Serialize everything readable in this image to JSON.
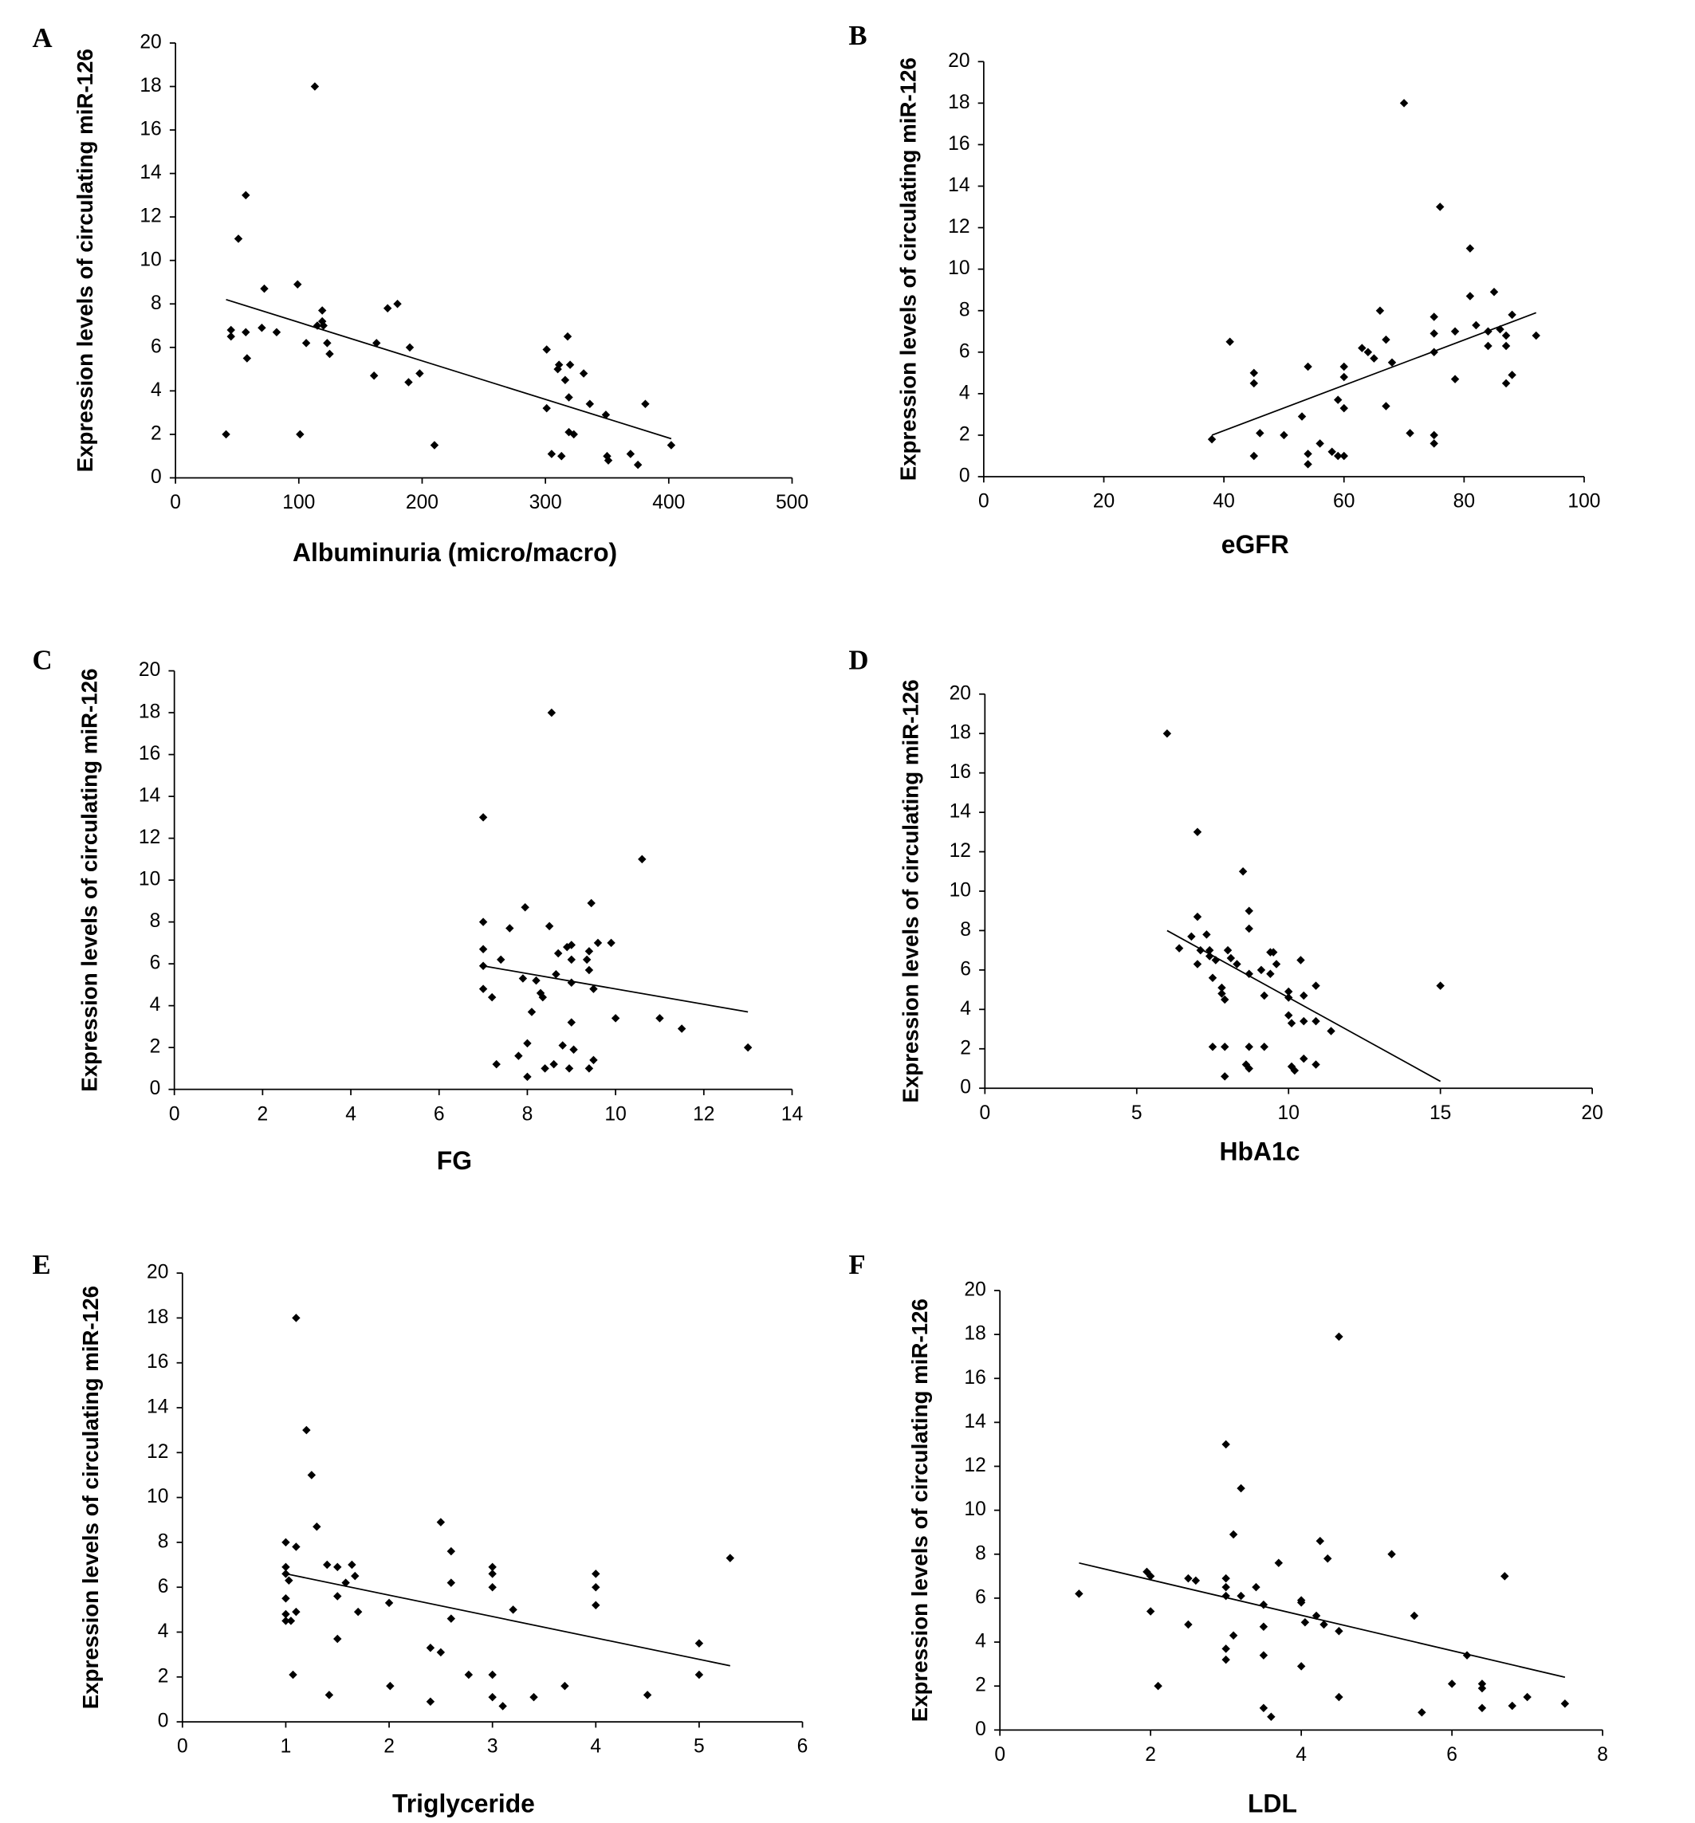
{
  "chart_data": [
    {
      "type": "scatter",
      "panel": "A",
      "x_label": "Albuminuria (micro/macro)",
      "y_label": "Expression levels of circulating miR-126",
      "color": "#000000",
      "xlim": [
        0,
        500
      ],
      "ylim": [
        0,
        20
      ],
      "xticks": [
        0,
        100,
        200,
        300,
        400,
        500
      ],
      "yticks": [
        0,
        2,
        4,
        6,
        8,
        10,
        12,
        14,
        16,
        18,
        20
      ],
      "x": [
        41,
        45,
        45,
        51,
        57,
        57,
        58,
        72,
        70,
        82,
        99,
        101,
        106,
        113,
        115,
        119,
        119,
        120,
        123,
        125,
        161,
        163,
        172,
        180,
        190,
        189,
        198,
        210,
        301,
        301,
        305,
        310,
        311,
        313,
        316,
        318,
        320,
        319,
        319,
        323,
        331,
        336,
        349,
        350,
        351,
        369,
        375,
        381,
        402
      ],
      "y": [
        2.0,
        6.8,
        6.5,
        11,
        13,
        6.7,
        5.5,
        8.7,
        6.9,
        6.7,
        8.9,
        2.0,
        6.2,
        18,
        7.0,
        7.2,
        7.7,
        7.0,
        6.2,
        5.7,
        4.7,
        6.2,
        7.8,
        8.0,
        6.0,
        4.4,
        4.8,
        1.5,
        5.9,
        3.2,
        1.1,
        5.0,
        5.2,
        1.0,
        4.5,
        6.5,
        5.2,
        3.7,
        2.1,
        2.0,
        4.8,
        3.4,
        2.9,
        1.0,
        0.8,
        1.1,
        0.6,
        3.4,
        1.5
      ],
      "trendline": {
        "x": [
          41,
          402
        ],
        "y": [
          8.2,
          1.8
        ]
      }
    },
    {
      "type": "scatter",
      "panel": "B",
      "x_label": "eGFR",
      "y_label": "Expression levels of circulating miR-126",
      "color": "#000000",
      "xlim": [
        0,
        100
      ],
      "ylim": [
        0,
        20
      ],
      "xticks": [
        0,
        20,
        40,
        60,
        80,
        100
      ],
      "yticks": [
        0,
        2,
        4,
        6,
        8,
        10,
        12,
        14,
        16,
        18,
        20
      ],
      "x": [
        38,
        41,
        45,
        45,
        45,
        46,
        50,
        53,
        54,
        54,
        54,
        56,
        58,
        59,
        59,
        60,
        60,
        60,
        60,
        63,
        64,
        65,
        66,
        67,
        67,
        68,
        70,
        71,
        75,
        75,
        75,
        75,
        75,
        76,
        78.5,
        78.5,
        81,
        81,
        82,
        84,
        85,
        84,
        86,
        87,
        87,
        87,
        88,
        88,
        92
      ],
      "y": [
        1.8,
        6.5,
        5.0,
        4.5,
        1.0,
        2.1,
        2.0,
        2.9,
        5.3,
        1.1,
        0.6,
        1.6,
        1.2,
        3.7,
        1.0,
        3.3,
        4.8,
        5.3,
        1.0,
        6.2,
        6.0,
        5.7,
        8.0,
        6.6,
        3.4,
        5.5,
        18,
        2.1,
        7.7,
        6.9,
        6.0,
        2.0,
        1.6,
        13,
        4.7,
        7.0,
        11,
        8.7,
        7.3,
        7.0,
        8.9,
        6.3,
        7.1,
        6.8,
        6.3,
        4.5,
        4.9,
        7.8,
        6.8
      ],
      "trendline": {
        "x": [
          38,
          92
        ],
        "y": [
          2.0,
          7.9
        ]
      }
    },
    {
      "type": "scatter",
      "panel": "C",
      "x_label": "FG",
      "y_label": "Expression levels of circulating miR-126",
      "color": "#000000",
      "xlim": [
        0,
        14
      ],
      "ylim": [
        0,
        20
      ],
      "xticks": [
        0,
        2,
        4,
        6,
        8,
        10,
        12,
        14
      ],
      "yticks": [
        0,
        2,
        4,
        6,
        8,
        10,
        12,
        14,
        16,
        18,
        20
      ],
      "x": [
        7.0,
        7.0,
        7.0,
        7.0,
        7.0,
        7.2,
        7.3,
        7.4,
        7.6,
        7.8,
        7.9,
        7.95,
        8.0,
        8.0,
        8.1,
        8.2,
        8.3,
        8.35,
        8.4,
        8.5,
        8.55,
        8.6,
        8.65,
        8.7,
        8.8,
        8.9,
        8.95,
        9.0,
        9.0,
        9.0,
        9.0,
        9.05,
        9.35,
        9.4,
        9.4,
        9.4,
        9.45,
        9.5,
        9.5,
        9.6,
        9.9,
        10.0,
        10.6,
        11.0,
        11.5,
        13.0
      ],
      "y": [
        13,
        8.0,
        6.7,
        5.9,
        4.8,
        4.4,
        1.2,
        6.2,
        7.7,
        1.6,
        5.3,
        8.7,
        2.2,
        0.6,
        3.7,
        5.2,
        4.6,
        4.4,
        1.0,
        7.8,
        18,
        1.2,
        5.5,
        6.5,
        2.1,
        6.8,
        1.0,
        6.9,
        6.2,
        5.1,
        3.2,
        1.9,
        6.2,
        5.7,
        6.6,
        1.0,
        8.9,
        1.4,
        4.8,
        7.0,
        7.0,
        3.4,
        11,
        3.4,
        2.9,
        2.0
      ],
      "trendline": {
        "x": [
          7.0,
          13.0
        ],
        "y": [
          5.9,
          3.7
        ]
      }
    },
    {
      "type": "scatter",
      "panel": "D",
      "x_label": "HbA1c",
      "y_label": "Expression levels of circulating miR-126",
      "color": "#000000",
      "xlim": [
        0,
        20
      ],
      "ylim": [
        0,
        20
      ],
      "xticks": [
        0,
        5,
        10,
        15,
        20
      ],
      "yticks": [
        0,
        2,
        4,
        6,
        8,
        10,
        12,
        14,
        16,
        18,
        20
      ],
      "x": [
        6.0,
        6.4,
        6.8,
        7.0,
        7.0,
        7.0,
        7.1,
        7.3,
        7.4,
        7.4,
        7.5,
        7.5,
        7.6,
        7.8,
        7.8,
        7.9,
        7.9,
        7.9,
        8.0,
        8.1,
        8.3,
        8.5,
        8.7,
        8.7,
        8.7,
        8.6,
        8.7,
        8.7,
        9.1,
        9.2,
        9.2,
        9.4,
        9.4,
        9.5,
        9.6,
        10.0,
        10.0,
        10.0,
        10.1,
        10.1,
        10.2,
        10.5,
        10.4,
        10.5,
        10.5,
        10.9,
        10.9,
        10.9,
        11.4,
        15.0
      ],
      "y": [
        18,
        7.1,
        7.7,
        13,
        8.7,
        6.3,
        7.0,
        7.8,
        7.0,
        6.7,
        5.6,
        2.1,
        6.5,
        5.1,
        4.8,
        4.5,
        2.1,
        0.6,
        7.0,
        6.6,
        6.3,
        11,
        9.0,
        8.1,
        5.8,
        1.2,
        1.0,
        2.1,
        6.0,
        4.7,
        2.1,
        6.9,
        5.8,
        6.9,
        6.3,
        3.7,
        4.6,
        4.9,
        3.3,
        1.1,
        0.9,
        4.7,
        6.5,
        3.4,
        1.5,
        1.2,
        5.2,
        3.4,
        2.9,
        5.2
      ],
      "trendline": {
        "x": [
          6.0,
          15.0
        ],
        "y": [
          8.0,
          0.35
        ]
      }
    },
    {
      "type": "scatter",
      "panel": "E",
      "x_label": "Triglyceride",
      "y_label": "Expression levels of circulating miR-126",
      "color": "#000000",
      "xlim": [
        0,
        6
      ],
      "ylim": [
        0,
        20
      ],
      "xticks": [
        0,
        1,
        2,
        3,
        4,
        5,
        6
      ],
      "yticks": [
        0,
        2,
        4,
        6,
        8,
        10,
        12,
        14,
        16,
        18,
        20
      ],
      "x": [
        1.0,
        1.0,
        1.0,
        1.0,
        1.0,
        1.0,
        1.03,
        1.05,
        1.07,
        1.1,
        1.1,
        1.1,
        1.2,
        1.25,
        1.3,
        1.4,
        1.42,
        1.5,
        1.5,
        1.5,
        1.58,
        1.64,
        1.67,
        1.7,
        2.0,
        2.01,
        2.4,
        2.4,
        2.5,
        2.5,
        2.6,
        2.6,
        2.6,
        2.77,
        3.0,
        3.0,
        3.0,
        3.0,
        3.0,
        3.1,
        3.2,
        3.4,
        3.7,
        4.0,
        4.0,
        4.0,
        4.5,
        5.0,
        5.0,
        5.3
      ],
      "y": [
        8.0,
        6.9,
        6.6,
        5.5,
        4.8,
        4.5,
        6.3,
        4.5,
        2.1,
        18,
        4.9,
        7.8,
        13,
        11,
        8.7,
        7.0,
        1.2,
        5.6,
        3.7,
        6.9,
        6.2,
        7.0,
        6.5,
        4.9,
        5.3,
        1.6,
        3.3,
        0.9,
        3.1,
        8.9,
        7.6,
        6.2,
        4.6,
        2.1,
        6.9,
        6.6,
        6.0,
        2.1,
        1.1,
        0.7,
        5.0,
        1.1,
        1.6,
        6.6,
        6.0,
        5.2,
        1.2,
        2.1,
        3.5,
        7.3
      ],
      "trendline": {
        "x": [
          1.0,
          5.3
        ],
        "y": [
          6.6,
          2.5
        ]
      }
    },
    {
      "type": "scatter",
      "panel": "F",
      "x_label": "LDL",
      "y_label": "Expression levels of circulating miR-126",
      "color": "#000000",
      "xlim": [
        0,
        8
      ],
      "ylim": [
        0,
        20
      ],
      "xticks": [
        0,
        2,
        4,
        6,
        8
      ],
      "yticks": [
        0,
        2,
        4,
        6,
        8,
        10,
        12,
        14,
        16,
        18,
        20
      ],
      "x": [
        1.05,
        1.95,
        2.0,
        2.0,
        2.1,
        2.5,
        2.5,
        2.6,
        3.0,
        3.0,
        3.0,
        3.0,
        3.0,
        3.0,
        3.1,
        3.1,
        3.2,
        3.2,
        3.4,
        3.5,
        3.5,
        3.5,
        3.5,
        3.6,
        3.7,
        4.0,
        4.0,
        4.0,
        4.05,
        4.2,
        4.25,
        4.3,
        4.35,
        4.5,
        4.5,
        4.5,
        5.2,
        5.5,
        5.6,
        6.0,
        6.2,
        6.4,
        6.4,
        6.4,
        6.7,
        6.8,
        7.0,
        7.5
      ],
      "y": [
        6.2,
        7.2,
        5.4,
        7.0,
        2.0,
        6.9,
        4.8,
        6.8,
        13,
        6.9,
        6.5,
        6.1,
        3.7,
        3.2,
        8.9,
        4.3,
        11,
        6.1,
        6.5,
        5.7,
        3.4,
        4.7,
        1.0,
        0.6,
        7.6,
        5.9,
        5.8,
        2.9,
        4.9,
        5.2,
        8.6,
        4.8,
        7.8,
        17.9,
        4.5,
        1.5,
        8.0,
        5.2,
        0.8,
        2.1,
        3.4,
        2.1,
        1.9,
        1.0,
        7.0,
        1.1,
        1.5,
        1.2
      ],
      "trendline": {
        "x": [
          1.05,
          7.5
        ],
        "y": [
          7.6,
          2.4
        ]
      }
    }
  ]
}
